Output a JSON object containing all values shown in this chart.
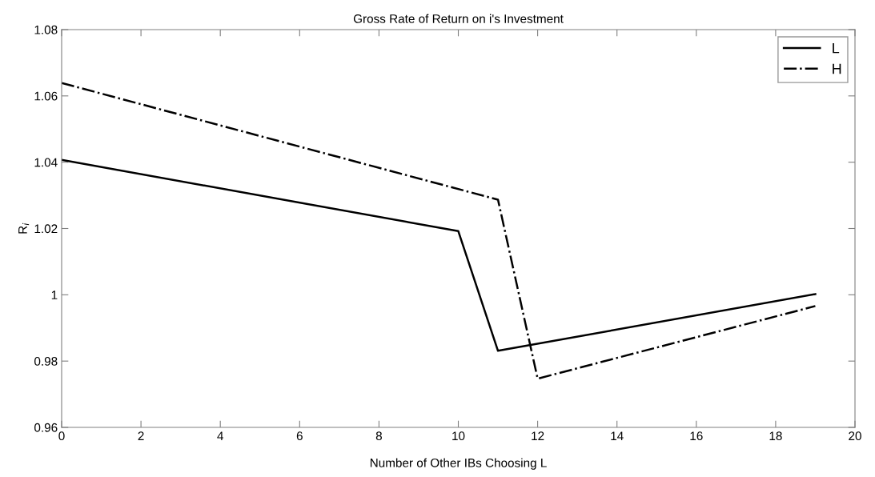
{
  "chart_data": {
    "type": "line",
    "title": "Gross Rate of Return on i's Investment",
    "xlabel": "Number of Other IBs Choosing L",
    "ylabel": "R$_{i}$",
    "series": [
      {
        "name": "L",
        "color": "#000000",
        "line_style": "solid",
        "x": [
          0,
          10,
          11,
          19
        ],
        "values": [
          1.0407,
          1.0192,
          0.9831,
          1.0002
        ]
      },
      {
        "name": "H",
        "color": "#000000",
        "line_style": "dashdot",
        "x": [
          0,
          11,
          12,
          19
        ],
        "values": [
          1.0639,
          1.0287,
          0.9747,
          0.9966
        ]
      }
    ],
    "xlim": [
      0,
      20
    ],
    "xticks": [
      0,
      2,
      4,
      6,
      8,
      10,
      12,
      14,
      16,
      18,
      20
    ],
    "ylim": [
      0.96,
      1.08
    ],
    "yticks": [
      {
        "value": 0.96,
        "label": "0.96"
      },
      {
        "value": 0.98,
        "label": "0.98"
      },
      {
        "value": 1,
        "label": "1"
      },
      {
        "value": 1.02,
        "label": "1.02"
      },
      {
        "value": 1.04,
        "label": "1.04"
      },
      {
        "value": 1.06,
        "label": "1.06"
      },
      {
        "value": 1.08,
        "label": "1.08"
      }
    ],
    "grid": false,
    "legend": "top right",
    "marker": "none"
  }
}
